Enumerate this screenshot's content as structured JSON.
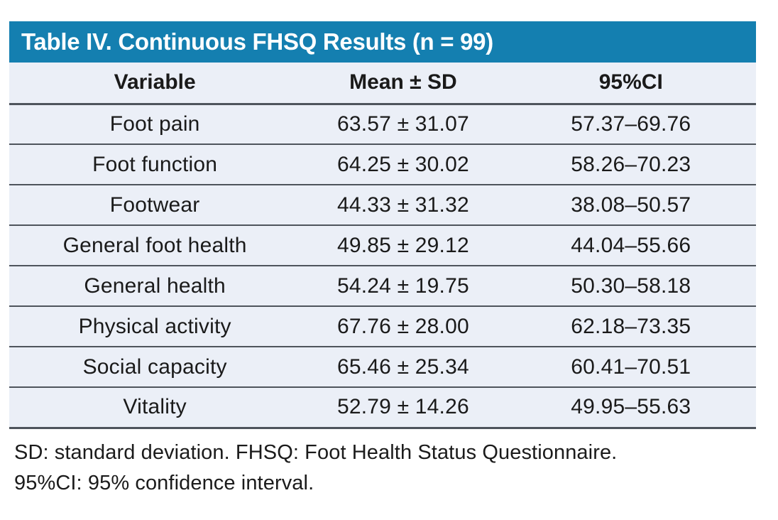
{
  "table": {
    "title": "Table IV. Continuous FHSQ Results (n = 99)",
    "columns": [
      "Variable",
      "Mean ± SD",
      "95%CI"
    ],
    "rows": [
      [
        "Foot pain",
        "63.57 ± 31.07",
        "57.37–69.76"
      ],
      [
        "Foot function",
        "64.25 ± 30.02",
        "58.26–70.23"
      ],
      [
        "Footwear",
        "44.33 ± 31.32",
        "38.08–50.57"
      ],
      [
        "General foot health",
        "49.85 ± 29.12",
        "44.04–55.66"
      ],
      [
        "General health",
        "54.24 ± 19.75",
        "50.30–58.18"
      ],
      [
        "Physical activity",
        "67.76 ± 28.00",
        "62.18–73.35"
      ],
      [
        "Social capacity",
        "65.46 ± 25.34",
        "60.41–70.51"
      ],
      [
        "Vitality",
        "52.79 ± 14.26",
        "49.95–55.63"
      ]
    ],
    "footnotes": [
      "SD: standard deviation. FHSQ: Foot Health Status Questionnaire.",
      "95%CI: 95% confidence interval."
    ]
  },
  "colors": {
    "title_bar_background": "#147FB0",
    "title_text": "#FFFFFF",
    "row_background": "#EBEFF7",
    "divider": "#4E545C",
    "page_background": "#FFFFFF"
  }
}
